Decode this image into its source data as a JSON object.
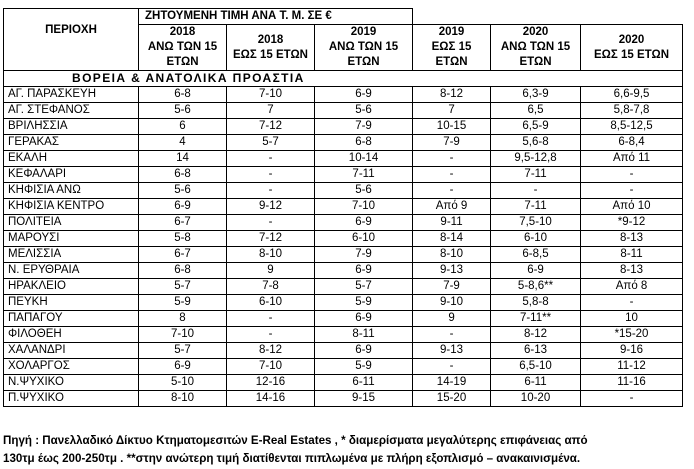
{
  "table": {
    "area_header": "ΠΕΡΙΟΧΗ",
    "title": "ΖΗΤΟΥΜΕΝΗ ΤΙΜΗ ΑΝΑ  Τ. Μ. ΣΕ €",
    "columns": [
      {
        "year": "2018",
        "label": "ΑΝΩ ΤΩΝ 15 ΕΤΩΝ"
      },
      {
        "year": "2018",
        "label": "ΕΩΣ 15 ΕΤΩΝ"
      },
      {
        "year": "2019",
        "label": "ΑΝΩ ΤΩΝ 15 ΕΤΩΝ"
      },
      {
        "year": "2019",
        "label": "ΕΩΣ 15 ΕΤΩΝ"
      },
      {
        "year": "2020",
        "label": "ΑΝΩ ΤΩΝ 15 ΕΤΩΝ"
      },
      {
        "year": "2020",
        "label": "ΕΩΣ 15 ΕΤΩΝ"
      }
    ],
    "section_title": "ΒΟΡΕΙΑ & ΑΝΑΤΟΛΙΚΑ ΠΡΟΑΣΤΙΑ",
    "rows": [
      {
        "area": "ΑΓ. ΠΑΡΑΣΚΕΥΗ",
        "values": [
          "6-8",
          "7-10",
          "6-9",
          "8-12",
          "6,3-9",
          "6,6-9,5"
        ]
      },
      {
        "area": "ΑΓ. ΣΤΕΦΑΝΟΣ",
        "values": [
          "5-6",
          "7",
          "5-6",
          "7",
          "6,5",
          "5,8-7,8"
        ]
      },
      {
        "area": "ΒΡΙΛΗΣΣΙΑ",
        "values": [
          "6",
          "7-12",
          "7-9",
          "10-15",
          "6,5-9",
          "8,5-12,5"
        ]
      },
      {
        "area": "ΓΕΡΑΚΑΣ",
        "values": [
          "4",
          "5-7",
          "6-8",
          "7-9",
          "5,6-8",
          "6-8,4"
        ]
      },
      {
        "area": "ΕΚΑΛΗ",
        "values": [
          "14",
          "-",
          "10-14",
          "-",
          "9,5-12,8",
          "Από 11"
        ]
      },
      {
        "area": "ΚΕΦΑΛΑΡΙ",
        "values": [
          "6-8",
          "-",
          "7-11",
          "-",
          "7-11",
          "-"
        ]
      },
      {
        "area": "ΚΗΦΙΣΙΑ ΑΝΩ",
        "values": [
          "5-6",
          "-",
          "5-6",
          "-",
          "-",
          "-"
        ]
      },
      {
        "area": "ΚΗΦΙΣΙΑ ΚΕΝΤΡΟ",
        "values": [
          "6-9",
          "9-12",
          "7-10",
          "Από 9",
          "7-11",
          "Από 10"
        ]
      },
      {
        "area": "ΠΟΛΙΤΕΙΑ",
        "values": [
          "6-7",
          "-",
          "6-9",
          "9-11",
          "7,5-10",
          "*9-12"
        ]
      },
      {
        "area": "ΜΑΡΟΥΣΙ",
        "values": [
          "5-8",
          "7-12",
          "6-10",
          "8-14",
          "6-10",
          "8-13"
        ]
      },
      {
        "area": "ΜΕΛΙΣΣΙΑ",
        "values": [
          "6-7",
          "8-10",
          "7-9",
          "8-10",
          "6-8,5",
          "8-11"
        ]
      },
      {
        "area": "Ν. ΕΡΥΘΡΑΙΑ",
        "values": [
          "6-8",
          "9",
          "6-9",
          "9-13",
          "6-9",
          "8-13"
        ]
      },
      {
        "area": "ΗΡΑΚΛΕΙΟ",
        "values": [
          "5-7",
          "7-8",
          "5-7",
          "7-9",
          "5-8,6**",
          "Από 8"
        ]
      },
      {
        "area": "ΠΕΥΚΗ",
        "values": [
          "5-9",
          "6-10",
          "5-9",
          "9-10",
          "5,8-8",
          "-"
        ]
      },
      {
        "area": "ΠΑΠΑΓΟΥ",
        "values": [
          "8",
          "-",
          "6-9",
          "9",
          "7-11**",
          "10"
        ]
      },
      {
        "area": "ΦΙΛΟΘΕΗ",
        "values": [
          "7-10",
          "-",
          "8-11",
          "-",
          "8-12",
          "*15-20"
        ]
      },
      {
        "area": "ΧΑΛΑΝΔΡΙ",
        "values": [
          "5-7",
          "8-12",
          "6-9",
          "9-13",
          "6-13",
          "9-16"
        ]
      },
      {
        "area": "ΧΟΛΑΡΓΟΣ",
        "values": [
          "6-9",
          "7-10",
          "5-9",
          "-",
          "6,5-10",
          "11-12"
        ]
      },
      {
        "area": "Ν.ΨΥΧΙΚΟ",
        "values": [
          "5-10",
          "12-16",
          "6-11",
          "14-19",
          "6-11",
          "11-16"
        ]
      },
      {
        "area": "Π.ΨΥΧΙΚΟ",
        "values": [
          "8-10",
          "14-16",
          "9-15",
          "15-20",
          "10-20",
          "-"
        ]
      }
    ]
  },
  "source_line1": "Πηγή : Πανελλαδικό Δίκτυο Κτηματομεσιτών E-Real Estates , * διαμερίσματα μεγαλύτερης επιφάνειας από",
  "source_line2": "130τμ έως 200-250τμ . **στην ανώτερη τιμή διατίθενται πιπλωμένα με πλήρη εξοπλισμό – ανακαινισμένα."
}
